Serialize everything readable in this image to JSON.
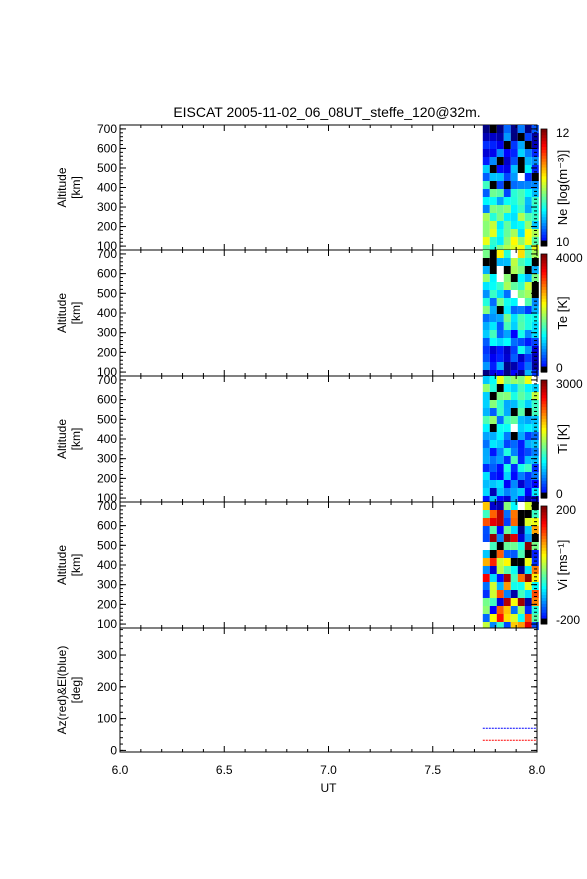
{
  "title": "EISCAT 2005-11-02_06_08UT_steffe_120@32m.",
  "colors": {
    "axis": "#000000",
    "az": "#ff0000",
    "el": "#0000ff"
  },
  "chart_data": [
    {
      "type": "heatmap",
      "panel": "Ne",
      "ylabel": [
        "Altitude",
        "[km]"
      ],
      "colorbar_label": "Ne [log(m⁻³)]",
      "colorbar_ticks": [
        "12",
        "10"
      ],
      "colorbar_range": [
        10,
        12
      ],
      "yticks": [
        100,
        200,
        300,
        400,
        500,
        600,
        700
      ],
      "ylim": [
        80,
        720
      ],
      "xlim": [
        6.0,
        8.0
      ],
      "data_x_range": [
        7.74,
        8.0
      ],
      "grid": false
    },
    {
      "type": "heatmap",
      "panel": "Te",
      "ylabel": [
        "Altitude",
        "[km]"
      ],
      "colorbar_label": "Te [K]",
      "colorbar_ticks": [
        "4000",
        "0"
      ],
      "colorbar_range": [
        0,
        4000
      ],
      "yticks": [
        100,
        200,
        300,
        400,
        500,
        600,
        700
      ],
      "ylim": [
        80,
        720
      ],
      "xlim": [
        6.0,
        8.0
      ],
      "data_x_range": [
        7.74,
        8.0
      ],
      "grid": false
    },
    {
      "type": "heatmap",
      "panel": "Ti",
      "ylabel": [
        "Altitude",
        "[km]"
      ],
      "colorbar_label": "Ti [K]",
      "colorbar_ticks": [
        "3000",
        "0"
      ],
      "colorbar_range": [
        0,
        3000
      ],
      "yticks": [
        100,
        200,
        300,
        400,
        500,
        600,
        700
      ],
      "ylim": [
        80,
        720
      ],
      "xlim": [
        6.0,
        8.0
      ],
      "data_x_range": [
        7.74,
        8.0
      ],
      "grid": false
    },
    {
      "type": "heatmap",
      "panel": "Vi",
      "ylabel": [
        "Altitude",
        "[km]"
      ],
      "colorbar_label": "Vi [ms⁻¹]",
      "colorbar_ticks": [
        "200",
        "-200"
      ],
      "colorbar_range": [
        -200,
        200
      ],
      "yticks": [
        100,
        200,
        300,
        400,
        500,
        600,
        700
      ],
      "ylim": [
        80,
        720
      ],
      "xlim": [
        6.0,
        8.0
      ],
      "data_x_range": [
        7.74,
        8.0
      ],
      "grid": false
    },
    {
      "type": "line",
      "panel": "AzEl",
      "ylabel": [
        "Az(red)&El(blue)",
        "[deg]"
      ],
      "yticks": [
        0,
        100,
        200,
        300
      ],
      "ylim": [
        -5,
        385
      ],
      "xlim": [
        6.0,
        8.0
      ],
      "xticks": [
        "6.0",
        "6.5",
        "7.0",
        "7.5",
        "8.0"
      ],
      "xlabel": "UT",
      "series": [
        {
          "x": [
            7.74,
            8.0
          ],
          "y": [
            32,
            32
          ]
        },
        {
          "x": [
            7.74,
            8.0
          ],
          "y": [
            70,
            70
          ]
        }
      ]
    }
  ]
}
